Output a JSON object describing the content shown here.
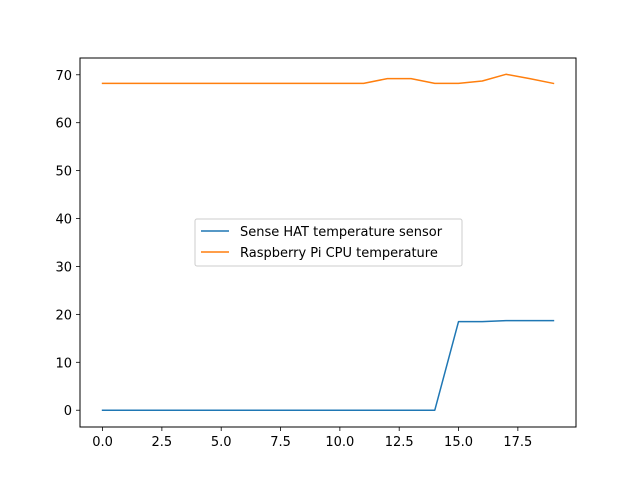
{
  "chart_data": {
    "type": "line",
    "title": "",
    "xlabel": "",
    "ylabel": "",
    "xlim": [
      -0.95,
      19.95
    ],
    "ylim": [
      -3.5,
      73.5
    ],
    "x": [
      0,
      1,
      2,
      3,
      4,
      5,
      6,
      7,
      8,
      9,
      10,
      11,
      12,
      13,
      14,
      15,
      16,
      17,
      18,
      19
    ],
    "x_ticks": [
      0.0,
      2.5,
      5.0,
      7.5,
      10.0,
      12.5,
      15.0,
      17.5
    ],
    "x_tick_labels": [
      "0.0",
      "2.5",
      "5.0",
      "7.5",
      "10.0",
      "12.5",
      "15.0",
      "17.5"
    ],
    "y_ticks": [
      0,
      10,
      20,
      30,
      40,
      50,
      60,
      70
    ],
    "y_tick_labels": [
      "0",
      "10",
      "20",
      "30",
      "40",
      "50",
      "60",
      "70"
    ],
    "grid": false,
    "legend_position": "center",
    "series": [
      {
        "name": "Sense HAT temperature sensor",
        "color": "#1f77b4",
        "values": [
          0,
          0,
          0,
          0,
          0,
          0,
          0,
          0,
          0,
          0,
          0,
          0,
          0,
          0,
          0,
          18.5,
          18.5,
          18.7,
          18.7,
          18.7
        ]
      },
      {
        "name": "Raspberry Pi CPU temperature",
        "color": "#ff7f0e",
        "values": [
          68.2,
          68.2,
          68.2,
          68.2,
          68.2,
          68.2,
          68.2,
          68.2,
          68.2,
          68.2,
          68.2,
          68.2,
          69.2,
          69.2,
          68.2,
          68.2,
          68.7,
          70.1,
          69.2,
          68.2
        ]
      }
    ]
  }
}
